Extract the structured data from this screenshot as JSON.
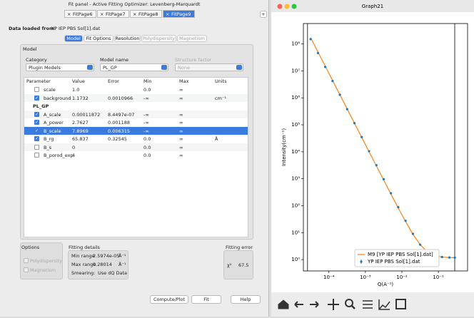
{
  "fit_panel": {
    "window_title": "Fit panel - Active Fitting Optimizer: Levenberg-Marquardt",
    "tabs": [
      "FitPage6",
      "FitPage7",
      "FitPage8",
      "FitPage9"
    ],
    "selected_tab": 3,
    "add_tab": "+",
    "data_label": "Data loaded from:",
    "data_file": "YP IEP PBS Sol[1].dat",
    "subtabs": [
      "Model",
      "Fit Options",
      "Resolution",
      "Polydispersity",
      "Magnetism"
    ],
    "subtab_enabled": [
      true,
      true,
      true,
      false,
      false
    ],
    "selected_subtab": 0,
    "model_group": "Model",
    "category_label": "Category",
    "category_value": "Plugin Models",
    "model_name_label": "Model name",
    "model_name_value": "PL_GP",
    "structure_factor_label": "Structure factor",
    "structure_factor_value": "None",
    "table": {
      "headers": [
        "Parameter",
        "Value",
        "Error",
        "Min",
        "Max",
        "Units"
      ],
      "rows": [
        {
          "name": "scale",
          "value": "1.0",
          "min": "0.0",
          "max": "∞",
          "checked": false
        },
        {
          "name": "background",
          "value": "1.1732",
          "error": "0.0010966",
          "min": "-∞",
          "max": "∞",
          "units": "cm⁻¹",
          "checked": true
        },
        {
          "group": "PL_GP"
        },
        {
          "name": "A_scale",
          "value": "0.00011872",
          "error": "8.4497e-07",
          "min": "-∞",
          "max": "∞",
          "checked": true
        },
        {
          "name": "A_power",
          "value": "2.7627",
          "error": "0.001188",
          "min": "-∞",
          "max": "∞",
          "checked": true
        },
        {
          "name": "B_scale",
          "value": "7.8969",
          "error": "0.006315",
          "min": "-∞",
          "max": "∞",
          "checked": true,
          "selected": true
        },
        {
          "name": "B_rg",
          "value": "65.837",
          "error": "0.32545",
          "min": "0.0",
          "max": "∞",
          "units": "Å",
          "checked": true
        },
        {
          "name": "B_s",
          "value": "0",
          "min": "0.0",
          "max": "∞",
          "checked": false
        },
        {
          "name": "B_porod_exp",
          "value": "4",
          "min": "0.0",
          "max": "∞",
          "checked": false
        }
      ]
    },
    "options": {
      "title": "Options",
      "items": [
        "Polydispersity",
        "Magnetism"
      ]
    },
    "fitting_details": {
      "title": "Fitting details",
      "min_label": "Min range",
      "min_value": "2.5974e-05",
      "max_label": "Max range",
      "max_value": "0.28014",
      "unit": "Å⁻¹",
      "smearing_label": "Smearing:",
      "smearing_value": "Use dQ Data"
    },
    "fitting_error": {
      "title": "Fitting error",
      "chi_label": "χ²",
      "value": "67.5"
    },
    "buttons": [
      "Compute/Plot",
      "Fit",
      "Help"
    ]
  },
  "graph_window": {
    "title": "Graph21"
  },
  "chart_data": {
    "type": "line",
    "xlabel": "Q(A⁻¹)",
    "ylabel": "Intensity(cm⁻¹)",
    "log_x": true,
    "log_y": true,
    "x": [
      3.16e-05,
      5.01e-05,
      7.94e-05,
      0.000126,
      0.0002,
      0.000316,
      0.000501,
      0.000794,
      0.00126,
      0.002,
      0.00316,
      0.00501,
      0.00794,
      0.0126,
      0.02,
      0.0316,
      0.0501,
      0.0794,
      0.126,
      0.2,
      0.282
    ],
    "series": [
      {
        "name": "M9 [YP IEP PBS Sol[1].dat]",
        "color": "#ff7f0e",
        "style": "line",
        "values": [
          170000000.0,
          50000000.0,
          15000000.0,
          4400000.0,
          1300000.0,
          390000.0,
          115000.0,
          34000.0,
          10000.0,
          3000,
          900,
          270,
          82,
          26,
          8.8,
          3.6,
          1.9,
          1.4,
          1.25,
          1.2,
          1.18
        ]
      },
      {
        "name": "YP IEP PBS Sol[1].dat",
        "color": "#1f77b4",
        "style": "points",
        "values": [
          150000000.0,
          46000000.0,
          14000000.0,
          4200000.0,
          1300000.0,
          380000.0,
          115000.0,
          35000.0,
          10500.0,
          3160,
          956,
          290,
          88,
          27.5,
          9.1,
          3.6,
          1.9,
          1.4,
          1.25,
          1.2,
          1.18
        ]
      }
    ],
    "range_markers": [
      2.5974e-05,
      0.28014
    ],
    "xlim": [
      2e-05,
      0.63
    ],
    "ylim": [
      0.38,
      570000000.0
    ],
    "xticks": [
      {
        "value": 0.0001,
        "label": "10⁻⁴"
      },
      {
        "value": 0.001,
        "label": "10⁻³"
      },
      {
        "value": 0.01,
        "label": "10⁻²"
      },
      {
        "value": 0.1,
        "label": "10⁻¹"
      }
    ],
    "yticks": [
      {
        "value": 1,
        "label": "10⁰"
      },
      {
        "value": 10,
        "label": "10¹"
      },
      {
        "value": 100,
        "label": "10²"
      },
      {
        "value": 1000,
        "label": "10³"
      },
      {
        "value": 10000,
        "label": "10⁴"
      },
      {
        "value": 100000,
        "label": "10⁵"
      },
      {
        "value": 1000000,
        "label": "10⁶"
      },
      {
        "value": 10000000,
        "label": "10⁷"
      },
      {
        "value": 100000000,
        "label": "10⁸"
      }
    ],
    "legend": "lower right"
  }
}
